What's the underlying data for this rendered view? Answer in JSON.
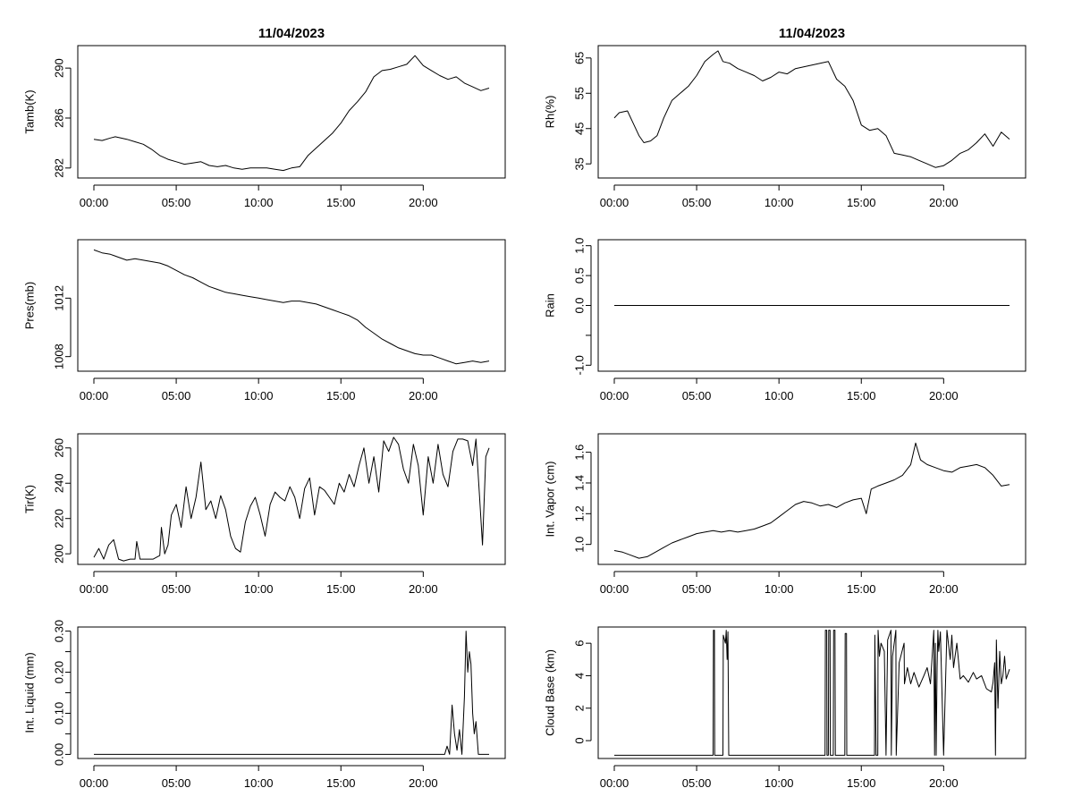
{
  "titles": {
    "left": "11/04/2023",
    "right": "11/04/2023"
  },
  "chart_data": [
    {
      "type": "line",
      "ylabel": "Tamb(K)",
      "xlim": [
        0,
        24
      ],
      "ylim": [
        281.2,
        291.8
      ],
      "x_ticks": [
        0,
        5,
        10,
        15,
        20
      ],
      "x_tick_labels": [
        "00:00",
        "05:00",
        "10:00",
        "15:00",
        "20:00"
      ],
      "y_ticks": [
        282,
        286,
        290
      ],
      "y_tick_labels": [
        "282",
        "286",
        "290"
      ],
      "x": [
        0,
        0.5,
        1,
        1.3,
        2,
        2.5,
        3,
        3.5,
        4,
        4.5,
        5,
        5.5,
        6,
        6.5,
        7,
        7.5,
        8,
        8.5,
        9,
        9.5,
        10,
        10.5,
        11,
        11.5,
        12,
        12.5,
        13,
        13.5,
        14,
        14.5,
        15,
        15.5,
        16,
        16.5,
        17,
        17.5,
        18,
        18.5,
        19,
        19.5,
        20,
        20.5,
        21,
        21.5,
        22,
        22.5,
        23,
        23.5,
        24
      ],
      "y": [
        284.3,
        284.2,
        284.4,
        284.5,
        284.3,
        284.1,
        283.9,
        283.5,
        283.0,
        282.7,
        282.5,
        282.3,
        282.4,
        282.5,
        282.2,
        282.1,
        282.2,
        282.0,
        281.9,
        282.0,
        282.0,
        282.0,
        281.9,
        281.8,
        282.0,
        282.1,
        283.0,
        283.6,
        284.2,
        284.8,
        285.6,
        286.6,
        287.3,
        288.1,
        289.3,
        289.8,
        289.9,
        290.1,
        290.3,
        291.0,
        290.2,
        289.8,
        289.4,
        289.1,
        289.3,
        288.8,
        288.5,
        288.2,
        288.4
      ]
    },
    {
      "type": "line",
      "ylabel": "Rh(%)",
      "xlim": [
        0,
        24
      ],
      "ylim": [
        31,
        68.5
      ],
      "x_ticks": [
        0,
        5,
        10,
        15,
        20
      ],
      "x_tick_labels": [
        "00:00",
        "05:00",
        "10:00",
        "15:00",
        "20:00"
      ],
      "y_ticks": [
        35,
        45,
        55,
        65
      ],
      "y_tick_labels": [
        "35",
        "45",
        "55",
        "65"
      ],
      "x": [
        0,
        0.3,
        0.8,
        1.2,
        1.5,
        1.8,
        2.2,
        2.6,
        3,
        3.5,
        4,
        4.5,
        5,
        5.5,
        6,
        6.3,
        6.6,
        7,
        7.5,
        8,
        8.5,
        9,
        9.5,
        10,
        10.5,
        11,
        11.5,
        12,
        12.5,
        13,
        13.5,
        14,
        14.5,
        15,
        15.5,
        16,
        16.5,
        17,
        17.5,
        18,
        18.5,
        19,
        19.5,
        20,
        20.5,
        21,
        21.5,
        22,
        22.5,
        23,
        23.5,
        24
      ],
      "y": [
        48,
        49.5,
        50,
        46,
        43,
        41,
        41.5,
        43,
        48,
        53,
        55,
        57,
        60,
        64,
        66,
        67,
        64,
        63.5,
        62,
        61,
        60,
        58.5,
        59.5,
        61,
        60.5,
        62,
        62.5,
        63,
        63.5,
        64,
        59,
        57,
        53,
        46,
        44.5,
        45,
        43,
        38,
        37.5,
        37,
        36,
        35,
        34,
        34.5,
        36,
        38,
        39,
        41,
        43.5,
        40,
        44,
        42
      ]
    },
    {
      "type": "line",
      "ylabel": "Pres(mb)",
      "xlim": [
        0,
        24
      ],
      "ylim": [
        1007,
        1016
      ],
      "x_ticks": [
        0,
        5,
        10,
        15,
        20
      ],
      "x_tick_labels": [
        "00:00",
        "05:00",
        "10:00",
        "15:00",
        "20:00"
      ],
      "y_ticks": [
        1008,
        1012
      ],
      "y_tick_labels": [
        "1008",
        "1012"
      ],
      "x": [
        0,
        0.5,
        1,
        1.5,
        2,
        2.5,
        3,
        3.5,
        4,
        4.5,
        5,
        5.5,
        6,
        6.5,
        7,
        7.5,
        8,
        8.5,
        9,
        9.5,
        10,
        10.5,
        11,
        11.5,
        12,
        12.5,
        13,
        13.5,
        14,
        14.5,
        15,
        15.5,
        16,
        16.5,
        17,
        17.5,
        18,
        18.5,
        19,
        19.5,
        20,
        20.5,
        21,
        21.5,
        22,
        22.5,
        23,
        23.5,
        24
      ],
      "y": [
        1015.3,
        1015.1,
        1015.0,
        1014.8,
        1014.6,
        1014.7,
        1014.6,
        1014.5,
        1014.4,
        1014.2,
        1013.9,
        1013.6,
        1013.4,
        1013.1,
        1012.8,
        1012.6,
        1012.4,
        1012.3,
        1012.2,
        1012.1,
        1012.0,
        1011.9,
        1011.8,
        1011.7,
        1011.8,
        1011.8,
        1011.7,
        1011.6,
        1011.4,
        1011.2,
        1011.0,
        1010.8,
        1010.5,
        1010.0,
        1009.6,
        1009.2,
        1008.9,
        1008.6,
        1008.4,
        1008.2,
        1008.1,
        1008.1,
        1007.9,
        1007.7,
        1007.5,
        1007.6,
        1007.7,
        1007.6,
        1007.7
      ]
    },
    {
      "type": "line",
      "ylabel": "Rain",
      "xlim": [
        0,
        24
      ],
      "ylim": [
        -1.1,
        1.1
      ],
      "x_ticks": [
        0,
        5,
        10,
        15,
        20
      ],
      "x_tick_labels": [
        "00:00",
        "05:00",
        "10:00",
        "15:00",
        "20:00"
      ],
      "y_ticks": [
        -1.0,
        -0.5,
        0.0,
        0.5,
        1.0
      ],
      "y_tick_labels": [
        "-1.0",
        "",
        "0.0",
        "0.5",
        "1.0"
      ],
      "x": [
        0,
        24
      ],
      "y": [
        0,
        0
      ]
    },
    {
      "type": "line",
      "ylabel": "Tir(K)",
      "xlim": [
        0,
        24
      ],
      "ylim": [
        194,
        268
      ],
      "x_ticks": [
        0,
        5,
        10,
        15,
        20
      ],
      "x_tick_labels": [
        "00:00",
        "05:00",
        "10:00",
        "15:00",
        "20:00"
      ],
      "y_ticks": [
        200,
        220,
        240,
        260
      ],
      "y_tick_labels": [
        "200",
        "220",
        "240",
        "260"
      ],
      "x": [
        0,
        0.3,
        0.6,
        0.9,
        1.2,
        1.5,
        1.8,
        2.2,
        2.5,
        2.6,
        2.8,
        3.2,
        3.6,
        4.0,
        4.1,
        4.3,
        4.5,
        4.7,
        5.0,
        5.3,
        5.6,
        5.9,
        6.2,
        6.5,
        6.8,
        7.1,
        7.4,
        7.7,
        8.0,
        8.3,
        8.6,
        8.9,
        9.2,
        9.5,
        9.8,
        10.1,
        10.4,
        10.7,
        11.0,
        11.3,
        11.6,
        11.9,
        12.2,
        12.5,
        12.8,
        13.1,
        13.4,
        13.7,
        14.0,
        14.3,
        14.6,
        14.9,
        15.2,
        15.5,
        15.8,
        16.1,
        16.4,
        16.7,
        17.0,
        17.3,
        17.6,
        17.9,
        18.2,
        18.5,
        18.8,
        19.1,
        19.4,
        19.7,
        20.0,
        20.3,
        20.6,
        20.9,
        21.2,
        21.5,
        21.8,
        22.1,
        22.4,
        22.7,
        23.0,
        23.2,
        23.4,
        23.6,
        23.8,
        24.0
      ],
      "y": [
        198,
        203,
        197,
        205,
        208,
        197,
        196,
        197,
        197,
        207,
        197,
        197,
        197,
        199,
        215,
        200,
        205,
        222,
        228,
        215,
        238,
        220,
        232,
        252,
        225,
        230,
        220,
        233,
        225,
        210,
        203,
        201,
        218,
        227,
        232,
        222,
        210,
        228,
        235,
        232,
        230,
        238,
        232,
        220,
        237,
        243,
        222,
        238,
        236,
        232,
        228,
        240,
        235,
        245,
        238,
        250,
        260,
        240,
        255,
        235,
        264,
        258,
        266,
        262,
        248,
        240,
        262,
        250,
        222,
        255,
        240,
        262,
        245,
        238,
        258,
        265,
        265,
        264,
        250,
        265,
        235,
        205,
        255,
        260
      ]
    },
    {
      "type": "line",
      "ylabel": "Int. Vapor (cm)",
      "xlim": [
        0,
        24
      ],
      "ylim": [
        0.87,
        1.72
      ],
      "x_ticks": [
        0,
        5,
        10,
        15,
        20
      ],
      "x_tick_labels": [
        "00:00",
        "05:00",
        "10:00",
        "15:00",
        "20:00"
      ],
      "y_ticks": [
        1.0,
        1.2,
        1.4,
        1.6
      ],
      "y_tick_labels": [
        "1.0",
        "1.2",
        "1.4",
        "1.6"
      ],
      "x": [
        0,
        0.5,
        1,
        1.5,
        2,
        2.5,
        3,
        3.5,
        4,
        4.5,
        5,
        5.5,
        6,
        6.5,
        7,
        7.5,
        8,
        8.5,
        9,
        9.5,
        10,
        10.5,
        11,
        11.5,
        12,
        12.5,
        13,
        13.5,
        14,
        14.5,
        15,
        15.3,
        15.6,
        16,
        16.5,
        17,
        17.5,
        18,
        18.3,
        18.6,
        19,
        19.5,
        20,
        20.5,
        21,
        21.5,
        22,
        22.5,
        23,
        23.5,
        24
      ],
      "y": [
        0.96,
        0.95,
        0.93,
        0.91,
        0.92,
        0.95,
        0.98,
        1.01,
        1.03,
        1.05,
        1.07,
        1.08,
        1.09,
        1.08,
        1.09,
        1.08,
        1.09,
        1.1,
        1.12,
        1.14,
        1.18,
        1.22,
        1.26,
        1.28,
        1.27,
        1.25,
        1.26,
        1.24,
        1.27,
        1.29,
        1.3,
        1.2,
        1.36,
        1.38,
        1.4,
        1.42,
        1.45,
        1.52,
        1.66,
        1.55,
        1.52,
        1.5,
        1.48,
        1.47,
        1.5,
        1.51,
        1.52,
        1.5,
        1.45,
        1.38,
        1.39
      ]
    },
    {
      "type": "line",
      "ylabel": "Int. Liquid (mm)",
      "xlim": [
        0,
        24
      ],
      "ylim": [
        -0.01,
        0.31
      ],
      "x_ticks": [
        0,
        5,
        10,
        15,
        20
      ],
      "x_tick_labels": [
        "00:00",
        "05:00",
        "10:00",
        "15:00",
        "20:00"
      ],
      "y_ticks": [
        0.0,
        0.05,
        0.1,
        0.15,
        0.2,
        0.25,
        0.3
      ],
      "y_tick_labels": [
        "0.00",
        "",
        "0.10",
        "",
        "0.20",
        "",
        "0.30"
      ],
      "x": [
        0,
        21.3,
        21.45,
        21.6,
        21.75,
        21.9,
        22.05,
        22.2,
        22.35,
        22.5,
        22.6,
        22.7,
        22.8,
        22.9,
        23.0,
        23.1,
        23.2,
        23.35,
        23.6,
        24
      ],
      "y": [
        0,
        0,
        0.02,
        0,
        0.12,
        0.05,
        0.01,
        0.06,
        0,
        0.14,
        0.3,
        0.2,
        0.25,
        0.22,
        0.1,
        0.05,
        0.08,
        0,
        0,
        0
      ]
    },
    {
      "type": "line",
      "ylabel": "Cloud Base (km)",
      "xlim": [
        0,
        24
      ],
      "ylim": [
        -1.1,
        7.0
      ],
      "x_ticks": [
        0,
        5,
        10,
        15,
        20
      ],
      "x_tick_labels": [
        "00:00",
        "05:00",
        "10:00",
        "15:00",
        "20:00"
      ],
      "y_ticks": [
        0,
        2,
        4,
        6
      ],
      "y_tick_labels": [
        "0",
        "2",
        "4",
        "6"
      ],
      "x": [
        0,
        6.0,
        6.02,
        6.08,
        6.1,
        6.6,
        6.62,
        6.75,
        6.8,
        6.85,
        6.9,
        6.95,
        7.0,
        7.05,
        12.8,
        12.82,
        12.9,
        12.92,
        13.0,
        13.02,
        13.1,
        13.12,
        13.3,
        13.32,
        13.4,
        13.42,
        14.0,
        14.02,
        14.1,
        14.12,
        15.8,
        15.82,
        15.9,
        16.0,
        16.02,
        16.1,
        16.2,
        16.4,
        16.5,
        16.6,
        16.8,
        16.82,
        16.9,
        17.1,
        17.12,
        17.3,
        17.6,
        17.62,
        17.8,
        18.0,
        18.2,
        18.5,
        18.8,
        19.0,
        19.2,
        19.4,
        19.45,
        19.5,
        19.55,
        19.6,
        19.65,
        19.7,
        19.8,
        20.0,
        20.2,
        20.4,
        20.5,
        20.6,
        20.8,
        21.0,
        21.2,
        21.5,
        21.8,
        22.0,
        22.3,
        22.6,
        22.9,
        23.0,
        23.1,
        23.15,
        23.2,
        23.3,
        23.4,
        23.5,
        23.6,
        23.7,
        23.8,
        24.0
      ],
      "y": [
        -0.9,
        -0.9,
        6.8,
        6.8,
        -0.9,
        -0.9,
        6.5,
        6.0,
        6.8,
        5.0,
        6.7,
        -0.9,
        -0.9,
        -0.9,
        -0.9,
        6.8,
        6.8,
        -0.9,
        -0.9,
        6.8,
        6.8,
        -0.9,
        -0.9,
        6.8,
        6.8,
        -0.9,
        -0.9,
        6.6,
        6.6,
        -0.9,
        -0.9,
        6.5,
        -0.9,
        -0.9,
        6.8,
        5.2,
        6.0,
        5.5,
        -0.9,
        6.2,
        6.8,
        -0.9,
        5.2,
        6.8,
        -0.9,
        4.8,
        6.0,
        3.5,
        4.5,
        3.5,
        4.2,
        3.3,
        4.0,
        4.5,
        3.5,
        6.8,
        -0.9,
        6.0,
        -0.9,
        4.5,
        6.8,
        5.5,
        6.7,
        -0.9,
        6.8,
        5.0,
        6.5,
        4.5,
        6.0,
        3.8,
        4.0,
        3.6,
        4.2,
        3.8,
        4.0,
        3.2,
        3.0,
        3.6,
        4.8,
        -0.9,
        6.2,
        2.0,
        5.5,
        3.5,
        4.0,
        5.2,
        3.8,
        4.4
      ]
    }
  ]
}
